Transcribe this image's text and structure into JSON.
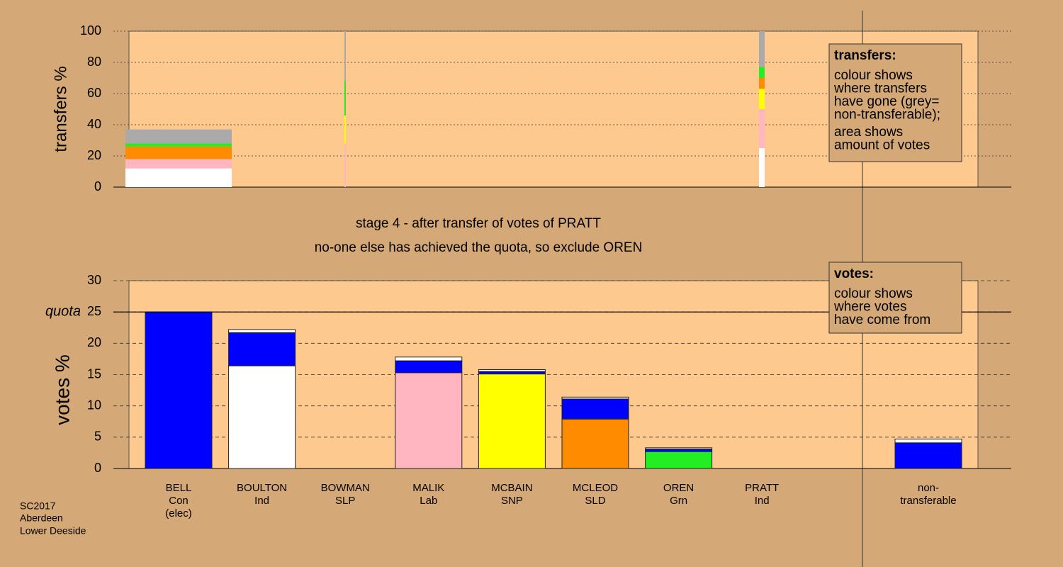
{
  "chart_data": [
    {
      "type": "stacked-bar",
      "y_label": "transfers %",
      "ylim": [
        0,
        100
      ],
      "yticks": [
        0,
        20,
        40,
        60,
        80,
        100
      ],
      "grid": true,
      "series": [
        {
          "color": "#ffffff",
          "values": [
            12,
            0,
            25
          ]
        },
        {
          "color": "#ffb6c1",
          "values": [
            6,
            28,
            25
          ]
        },
        {
          "color": "#ffff00",
          "values": [
            0,
            18,
            13
          ]
        },
        {
          "color": "#ff8c00",
          "values": [
            8,
            0,
            7
          ]
        },
        {
          "color": "#22ee22",
          "values": [
            2,
            22,
            7
          ]
        },
        {
          "color": "#aaaaaa",
          "values": [
            9,
            32,
            23
          ]
        }
      ],
      "note_title": "transfers:",
      "note_lines": [
        "colour shows",
        "where transfers",
        "have gone (grey=",
        "non-transferable);",
        "area shows",
        "amount of votes"
      ]
    },
    {
      "type": "stacked-bar",
      "y_label": "votes %",
      "subtitle_lines": [
        "stage 4 - after transfer of votes of PRATT",
        "no-one else has achieved the quota, so exclude OREN"
      ],
      "ylim": [
        0,
        30
      ],
      "yticks": [
        0,
        5,
        10,
        15,
        20,
        25,
        30
      ],
      "grid": true,
      "quota": {
        "value": 25,
        "label": "quota"
      },
      "categories": [
        [
          "BELL",
          "Con",
          "(elec)"
        ],
        [
          "BOULTON",
          "Ind"
        ],
        [
          "BOWMAN",
          "SLP"
        ],
        [
          "MALIK",
          "Lab"
        ],
        [
          "MCBAIN",
          "SNP"
        ],
        [
          "MCLEOD",
          "SLD"
        ],
        [
          "OREN",
          "Grn"
        ],
        [
          "PRATT",
          "Ind"
        ],
        [
          "non-",
          "transferable"
        ]
      ],
      "series": [
        {
          "colors": [
            "#0000ff",
            "#ffffff",
            "#888888",
            "#ffb6c1",
            "#ffff00",
            "#ff8c00",
            "#22ee22",
            "#ffffff",
            "#0000ff"
          ],
          "values": [
            25,
            16.4,
            0,
            15.3,
            15.1,
            7.9,
            2.7,
            0,
            0
          ]
        },
        {
          "color": "#0000ff",
          "values": [
            0,
            5.3,
            0,
            1.9,
            0.4,
            3.2,
            0.4,
            0,
            4.1
          ]
        },
        {
          "color": "#ffffff",
          "values": [
            0,
            0.5,
            0,
            0.6,
            0.3,
            0.3,
            0.2,
            0,
            0.6
          ]
        }
      ],
      "note_title": "votes:",
      "note_lines": [
        "colour shows",
        "where votes",
        "have come from"
      ]
    }
  ],
  "footer": [
    "SC2017",
    "Aberdeen",
    "Lower Deeside"
  ]
}
